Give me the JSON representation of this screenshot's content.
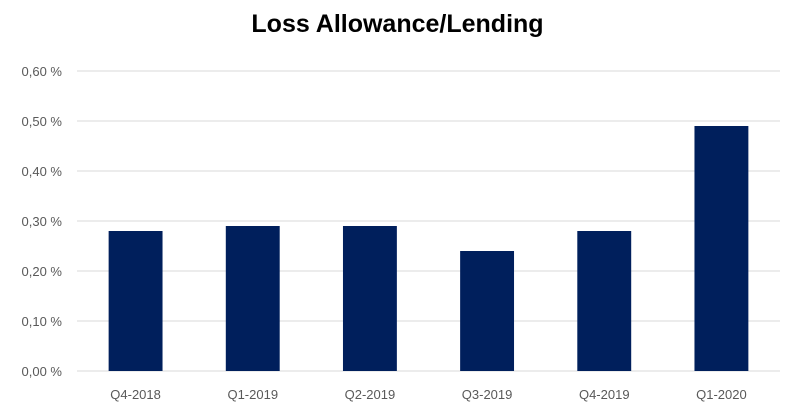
{
  "chart_data": {
    "type": "bar",
    "title": "Loss Allowance/Lending",
    "xlabel": "",
    "ylabel": "",
    "categories": [
      "Q4-2018",
      "Q1-2019",
      "Q2-2019",
      "Q3-2019",
      "Q4-2019",
      "Q1-2020"
    ],
    "values": [
      0.28,
      0.29,
      0.29,
      0.24,
      0.28,
      0.49
    ],
    "value_unit": "%",
    "ylim": [
      0,
      0.6
    ],
    "yticks": [
      "0,00 %",
      "0,10 %",
      "0,20 %",
      "0,30 %",
      "0,40 %",
      "0,50 %",
      "0,60 %"
    ],
    "ytick_values": [
      0,
      0.1,
      0.2,
      0.3,
      0.4,
      0.5,
      0.6
    ],
    "grid": true,
    "legend": "none",
    "colors": {
      "bar": "#001F5C",
      "grid": "#D9D9D9",
      "text": "#595959"
    }
  }
}
